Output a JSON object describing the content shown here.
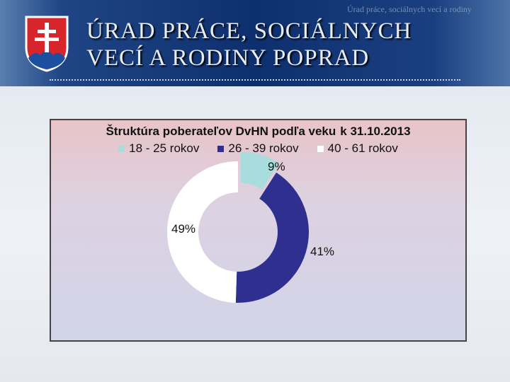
{
  "header": {
    "line1": "ÚRAD PRÁCE, SOCIÁLNYCH",
    "line2": "VECÍ A RODINY POPRAD",
    "subtitle": "Úrad práce, sociálnych vecí a rodiny"
  },
  "chart_data": {
    "type": "pie",
    "variant": "donut",
    "title": "Štruktúra poberateľov DvHN podľa veku",
    "subtitle": "k 31.10.2013",
    "categories": [
      "18 - 25 rokov",
      "26 - 39 rokov",
      "40 - 61 rokov"
    ],
    "values": [
      9,
      41,
      49
    ],
    "labels": [
      "9%",
      "41%",
      "49%"
    ],
    "colors": [
      "#a9dcdc",
      "#2e2f8e",
      "#ffffff"
    ],
    "legend": "top"
  }
}
